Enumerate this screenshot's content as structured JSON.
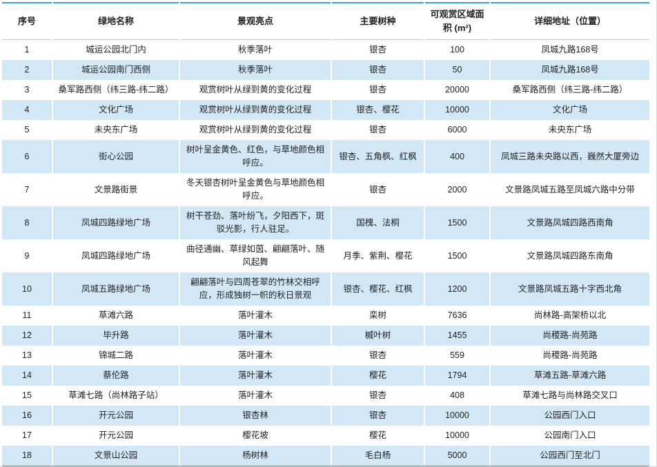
{
  "table": {
    "columns": [
      {
        "key": "index",
        "label": "序号"
      },
      {
        "key": "name",
        "label": "绿地名称"
      },
      {
        "key": "highlight",
        "label": "景观亮点"
      },
      {
        "key": "species",
        "label": "主要树种"
      },
      {
        "key": "area",
        "label": "可观赏区域面积 (m²)"
      },
      {
        "key": "address",
        "label": "详细地址（位置）"
      }
    ],
    "rows": [
      {
        "index": "1",
        "name": "城运公园北门内",
        "highlight": "秋季落叶",
        "species": "银杏",
        "area": "100",
        "address": "凤城九路168号"
      },
      {
        "index": "2",
        "name": "城运公园南门西侧",
        "highlight": "秋季落叶",
        "species": "银杏",
        "area": "50",
        "address": "凤城九路168号"
      },
      {
        "index": "3",
        "name": "桑军路西侧（纬三路-纬二路）",
        "highlight": "观赏树叶从绿到黄的变化过程",
        "species": "银杏",
        "area": "20000",
        "address": "桑军路西侧（纬三路-纬二路）"
      },
      {
        "index": "4",
        "name": "文化广场",
        "highlight": "观赏树叶从绿到黄的变化过程",
        "species": "银杏、樱花",
        "area": "10000",
        "address": "文化广场"
      },
      {
        "index": "5",
        "name": "未央东广场",
        "highlight": "观赏树叶从绿到黄的变化过程",
        "species": "银杏",
        "area": "6000",
        "address": "未央东广场"
      },
      {
        "index": "6",
        "name": "街心公园",
        "highlight": "树叶呈金黄色、红色，与草地颜色相呼应。",
        "species": "银杏、五角枫、红枫",
        "area": "400",
        "address": "凤城三路未央路以西，巍然大厦旁边"
      },
      {
        "index": "7",
        "name": "文景路街景",
        "highlight": "冬天银杏树叶呈金黄色与草地颜色相呼应。",
        "species": "银杏",
        "area": "2000",
        "address": "文景路凤城五路至凤城六路中分带"
      },
      {
        "index": "8",
        "name": "凤城四路绿地广场",
        "highlight": "树干苍劲、落叶纷飞，夕阳西下，斑驳光影，行人驻足。",
        "species": "国槐、法桐",
        "area": "1500",
        "address": "文景路凤城四路西南角"
      },
      {
        "index": "9",
        "name": "凤城四路绿地广场",
        "highlight": "曲径通幽、草绿如茵、翩翩落叶、随风起舞",
        "species": "月季、紫荆、樱花",
        "area": "1500",
        "address": "文景路凤城四路东南角"
      },
      {
        "index": "10",
        "name": "凤城五路绿地广场",
        "highlight": "翩翩落叶与四周苍翠的竹林交相呼应，形成独树一帜的秋日景观",
        "species": "银杏、樱花、红枫",
        "area": "1200",
        "address": "文景路凤城五路十字西北角"
      },
      {
        "index": "11",
        "name": "草滩六路",
        "highlight": "落叶灌木",
        "species": "栾树",
        "area": "7636",
        "address": "尚林路-高架桥以北"
      },
      {
        "index": "12",
        "name": "毕升路",
        "highlight": "落叶灌木",
        "species": "槭叶树",
        "area": "1455",
        "address": "尚稷路-尚苑路"
      },
      {
        "index": "13",
        "name": "锦城二路",
        "highlight": "落叶灌木",
        "species": "银杏",
        "area": "559",
        "address": "尚稷路-尚苑路"
      },
      {
        "index": "14",
        "name": "蔡伦路",
        "highlight": "落叶灌木",
        "species": "樱花",
        "area": "1794",
        "address": "草滩五路-草滩六路"
      },
      {
        "index": "15",
        "name": "草滩七路（尚林路子站）",
        "highlight": "落叶灌木",
        "species": "银杏",
        "area": "408",
        "address": "草滩七路与尚林路交叉口"
      },
      {
        "index": "16",
        "name": "开元公园",
        "highlight": "银杏林",
        "species": "银杏",
        "area": "10000",
        "address": "公园西门入口"
      },
      {
        "index": "17",
        "name": "开元公园",
        "highlight": "樱花坡",
        "species": "樱花",
        "area": "10000",
        "address": "公园南门入口"
      },
      {
        "index": "18",
        "name": "文景山公园",
        "highlight": "杨树林",
        "species": "毛白杨",
        "area": "5000",
        "address": "公园西门至北门"
      }
    ]
  },
  "colors": {
    "accent_border": "#31a2d9",
    "stripe_blue": "#d2e8f6",
    "header_underline": "#a5cbe9",
    "text": "#1f1f1f"
  }
}
